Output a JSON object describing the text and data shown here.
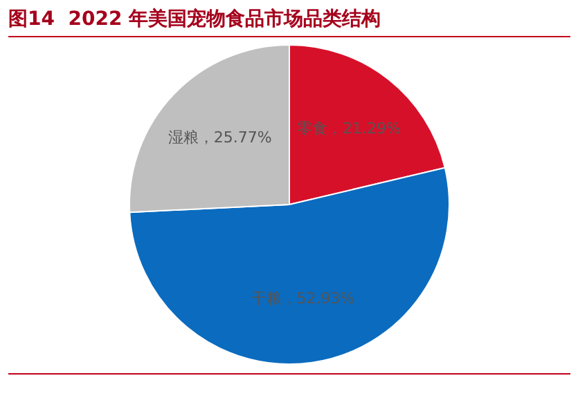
{
  "chart_data": {
    "type": "pie",
    "title": "图14  2022 年美国宠物食品市场品类结构",
    "categories": [
      "零食",
      "干粮",
      "湿粮"
    ],
    "values": [
      21.29,
      52.93,
      25.77
    ],
    "value_labels": [
      "21.29%",
      "52.93%",
      "25.77%"
    ],
    "colors": [
      "#d7102a",
      "#0b6bbf",
      "#bfbfbf"
    ],
    "legend": false
  }
}
